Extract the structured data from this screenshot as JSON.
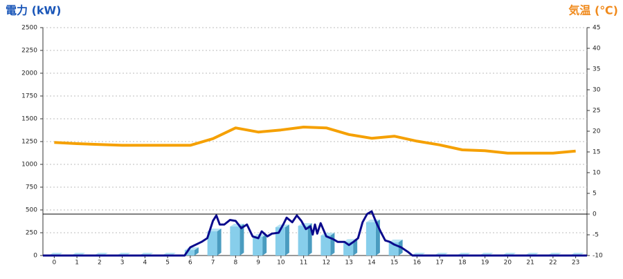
{
  "chart_data": {
    "type": "combo",
    "y_title": "電力 (kW)",
    "y2_title": "気温 (℃)",
    "categories": [
      "0",
      "1",
      "2",
      "3",
      "4",
      "5",
      "6",
      "7",
      "8",
      "9",
      "10",
      "11",
      "12",
      "13",
      "14",
      "15",
      "16",
      "17",
      "18",
      "19",
      "20",
      "21",
      "22",
      "23"
    ],
    "ylim": [
      0,
      2500
    ],
    "yticks": [
      0,
      250,
      500,
      750,
      1000,
      1250,
      1500,
      1750,
      2000,
      2250,
      2500
    ],
    "y2lim": [
      -10,
      45
    ],
    "y2ticks": [
      -10,
      -5,
      0,
      5,
      10,
      15,
      20,
      25,
      30,
      35,
      40,
      45
    ],
    "grid": true,
    "y2_zero_line": true,
    "series": [
      {
        "kind": "bar3d",
        "color": "#87ceeb",
        "side_color": "#4a9cc0",
        "top_color": "#b6e3f4",
        "values": [
          0,
          0,
          0,
          0,
          0,
          0,
          60,
          265,
          318,
          205,
          310,
          325,
          220,
          150,
          365,
          145,
          0,
          0,
          0,
          0,
          0,
          0,
          0,
          0
        ]
      },
      {
        "kind": "line",
        "color": "#0a0a8c",
        "x": [
          -0.5,
          5.75,
          6,
          6.5,
          6.75,
          7,
          7.15,
          7.3,
          7.5,
          7.75,
          8,
          8.25,
          8.5,
          8.75,
          9,
          9.15,
          9.4,
          9.6,
          9.9,
          10.1,
          10.25,
          10.5,
          10.7,
          10.9,
          11.1,
          11.3,
          11.4,
          11.5,
          11.6,
          11.75,
          12,
          12.3,
          12.5,
          12.8,
          13,
          13.2,
          13.4,
          13.6,
          13.8,
          14,
          14.2,
          14.4,
          14.6,
          14.8,
          15,
          15.3,
          15.6,
          15.8,
          23.5
        ],
        "values": [
          0,
          0,
          90,
          150,
          190,
          380,
          440,
          340,
          340,
          390,
          380,
          300,
          340,
          210,
          190,
          265,
          210,
          240,
          250,
          340,
          415,
          365,
          440,
          380,
          290,
          320,
          230,
          340,
          240,
          355,
          210,
          180,
          150,
          150,
          115,
          150,
          190,
          365,
          455,
          485,
          365,
          260,
          165,
          150,
          120,
          90,
          40,
          0,
          0
        ]
      },
      {
        "kind": "line",
        "axis": "y2",
        "color": "#f5a000",
        "values": [
          17.3,
          17.0,
          16.8,
          16.6,
          16.6,
          16.6,
          16.6,
          18.2,
          20.8,
          19.8,
          20.3,
          21.0,
          20.8,
          19.2,
          18.3,
          18.8,
          17.6,
          16.7,
          15.5,
          15.3,
          14.7,
          14.7,
          14.7,
          15.2
        ]
      }
    ]
  }
}
